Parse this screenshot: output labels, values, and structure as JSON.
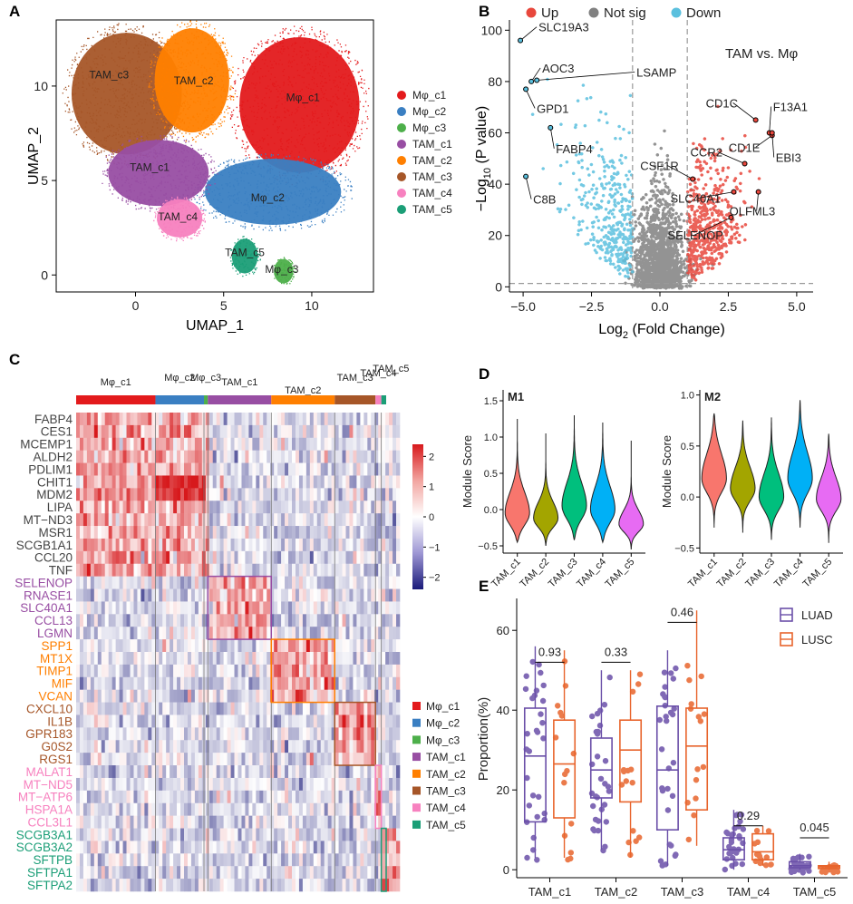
{
  "panels": {
    "A": "A",
    "B": "B",
    "C": "C",
    "D": "D",
    "E": "E"
  },
  "colors": {
    "Mphi_c1": "#e31a1c",
    "Mphi_c2": "#3a7fc2",
    "Mphi_c3": "#4daf4a",
    "TAM_c1": "#984ea3",
    "TAM_c2": "#ff7f00",
    "TAM_c3": "#a65628",
    "TAM_c4": "#f781bf",
    "TAM_c5": "#1b9e77",
    "up": "#e8473c",
    "notsig": "#808080",
    "down": "#5bc0de",
    "luad": "#6a4fa8",
    "lusc": "#e8642c"
  },
  "umap": {
    "xlabel": "UMAP_1",
    "ylabel": "UMAP_2",
    "xticks": [
      "0",
      "5",
      "10"
    ],
    "yticks": [
      "0",
      "5",
      "10"
    ],
    "xticks_val": [
      0,
      5,
      10
    ],
    "yticks_val": [
      0,
      5,
      10
    ],
    "xlim": [
      -4.5,
      13.5
    ],
    "ylim": [
      -0.9,
      13.5
    ],
    "clusters": [
      {
        "key": "Mphi_c1",
        "label": "Mφ_c1",
        "cx": 9.5,
        "cy": 9.2
      },
      {
        "key": "Mphi_c2",
        "label": "Mφ_c2",
        "cx": 7.5,
        "cy": 3.9
      },
      {
        "key": "Mphi_c3",
        "label": "Mφ_c3",
        "cx": 8.3,
        "cy": 0.1
      },
      {
        "key": "TAM_c1",
        "label": "TAM_c1",
        "cx": 0.8,
        "cy": 5.5
      },
      {
        "key": "TAM_c2",
        "label": "TAM_c2",
        "cx": 3.3,
        "cy": 10.1
      },
      {
        "key": "TAM_c3",
        "label": "TAM_c3",
        "cx": -1.5,
        "cy": 10.4
      },
      {
        "key": "TAM_c4",
        "label": "TAM_c4",
        "cx": 2.4,
        "cy": 2.9
      },
      {
        "key": "TAM_c5",
        "label": "TAM_c5",
        "cx": 6.2,
        "cy": 1.0
      }
    ]
  },
  "volcano": {
    "legend": [
      "Up",
      "Not sig",
      "Down"
    ],
    "title": "TAM vs. Mφ",
    "xlabel_pre": "Log",
    "xlabel_sub": "2",
    "xlabel_post": " (Fold Change)",
    "ylabel_pre": "−Log",
    "ylabel_sub": "10",
    "ylabel_post": " (P value)",
    "xticks": [
      "−5.0",
      "−2.5",
      "0.0",
      "2.5",
      "5.0"
    ],
    "xticks_val": [
      -5,
      -2.5,
      0,
      2.5,
      5
    ],
    "yticks": [
      "0",
      "20",
      "40",
      "60",
      "80",
      "100"
    ],
    "yticks_val": [
      0,
      20,
      40,
      60,
      80,
      100
    ],
    "xlim": [
      -5.5,
      5.6
    ],
    "ylim": [
      -2,
      104
    ],
    "fc_threshold": 1,
    "p_threshold": 1.3,
    "labeled_genes": [
      {
        "name": "SLC19A3",
        "x": -5.1,
        "y": 96,
        "dir": "down"
      },
      {
        "name": "AOC3",
        "x": -4.7,
        "y": 80,
        "dir": "down"
      },
      {
        "name": "LSAMP",
        "x": -4.5,
        "y": 80.5,
        "dir": "down"
      },
      {
        "name": "GPD1",
        "x": -4.9,
        "y": 77,
        "dir": "down"
      },
      {
        "name": "FABP4",
        "x": -4.0,
        "y": 62,
        "dir": "down"
      },
      {
        "name": "C8B",
        "x": -4.9,
        "y": 43,
        "dir": "down"
      },
      {
        "name": "CD1C",
        "x": 3.5,
        "y": 65,
        "dir": "up"
      },
      {
        "name": "F13A1",
        "x": 4.0,
        "y": 60,
        "dir": "up"
      },
      {
        "name": "CD1E",
        "x": 4.1,
        "y": 59,
        "dir": "up"
      },
      {
        "name": "EBI3",
        "x": 4.1,
        "y": 60,
        "dir": "up"
      },
      {
        "name": "CSF1R",
        "x": 1.2,
        "y": 42,
        "dir": "up"
      },
      {
        "name": "CCR2",
        "x": 3.1,
        "y": 48,
        "dir": "up"
      },
      {
        "name": "SLC40A1",
        "x": 2.7,
        "y": 37,
        "dir": "up"
      },
      {
        "name": "OLFML3",
        "x": 3.6,
        "y": 37,
        "dir": "up"
      },
      {
        "name": "SELENOP",
        "x": 2.6,
        "y": 27,
        "dir": "up"
      }
    ]
  },
  "heatmap": {
    "column_groups": [
      {
        "key": "Mphi_c1",
        "label": "Mφ_c1",
        "frac": 0.245
      },
      {
        "key": "Mphi_c2",
        "label": "Mφ_c2",
        "frac": 0.15
      },
      {
        "key": "Mphi_c3",
        "label": "Mφ_c3",
        "frac": 0.012
      },
      {
        "key": "TAM_c1",
        "label": "TAM_c1",
        "frac": 0.196
      },
      {
        "key": "TAM_c2",
        "label": "TAM_c2",
        "frac": 0.196
      },
      {
        "key": "TAM_c3",
        "label": "TAM_c3",
        "frac": 0.126
      },
      {
        "key": "TAM_c4",
        "label": "TAM_c4",
        "frac": 0.018
      },
      {
        "key": "TAM_c5",
        "label": "TAM_c5",
        "frac": 0.015
      }
    ],
    "genes": [
      {
        "name": "FABP4",
        "group": "Mphi"
      },
      {
        "name": "CES1",
        "group": "Mphi"
      },
      {
        "name": "MCEMP1",
        "group": "Mphi"
      },
      {
        "name": "ALDH2",
        "group": "Mphi"
      },
      {
        "name": "PDLIM1",
        "group": "Mphi"
      },
      {
        "name": "CHIT1",
        "group": "Mphi"
      },
      {
        "name": "MDM2",
        "group": "Mphi"
      },
      {
        "name": "LIPA",
        "group": "Mphi"
      },
      {
        "name": "MT−ND3",
        "group": "Mphi"
      },
      {
        "name": "MSR1",
        "group": "Mphi"
      },
      {
        "name": "SCGB1A1",
        "group": "Mphi"
      },
      {
        "name": "CCL20",
        "group": "Mphi"
      },
      {
        "name": "TNF",
        "group": "Mphi"
      },
      {
        "name": "SELENOP",
        "group": "TAM_c1"
      },
      {
        "name": "RNASE1",
        "group": "TAM_c1"
      },
      {
        "name": "SLC40A1",
        "group": "TAM_c1"
      },
      {
        "name": "CCL13",
        "group": "TAM_c1"
      },
      {
        "name": "LGMN",
        "group": "TAM_c1"
      },
      {
        "name": "SPP1",
        "group": "TAM_c2"
      },
      {
        "name": "MT1X",
        "group": "TAM_c2"
      },
      {
        "name": "TIMP1",
        "group": "TAM_c2"
      },
      {
        "name": "MIF",
        "group": "TAM_c2"
      },
      {
        "name": "VCAN",
        "group": "TAM_c2"
      },
      {
        "name": "CXCL10",
        "group": "TAM_c3"
      },
      {
        "name": "IL1B",
        "group": "TAM_c3"
      },
      {
        "name": "GPR183",
        "group": "TAM_c3"
      },
      {
        "name": "G0S2",
        "group": "TAM_c3"
      },
      {
        "name": "RGS1",
        "group": "TAM_c3"
      },
      {
        "name": "MALAT1",
        "group": "TAM_c4"
      },
      {
        "name": "MT−ND5",
        "group": "TAM_c4"
      },
      {
        "name": "MT−ATP6",
        "group": "TAM_c4"
      },
      {
        "name": "HSPA1A",
        "group": "TAM_c4"
      },
      {
        "name": "CCL3L1",
        "group": "TAM_c4"
      },
      {
        "name": "SCGB3A1",
        "group": "TAM_c5"
      },
      {
        "name": "SCGB3A2",
        "group": "TAM_c5"
      },
      {
        "name": "SFTPB",
        "group": "TAM_c5"
      },
      {
        "name": "SFTPA1",
        "group": "TAM_c5"
      },
      {
        "name": "SFTPA2",
        "group": "TAM_c5"
      }
    ],
    "scale_ticks": [
      "2",
      "1",
      "0",
      "−1",
      "−2"
    ],
    "scale_vals": [
      2,
      1,
      0,
      -1,
      -2
    ],
    "scale_range": [
      -2.4,
      2.4
    ]
  },
  "violin": {
    "ylabel": "Module Score",
    "categories": [
      "TAM_c1",
      "TAM_c2",
      "TAM_c3",
      "TAM_c4",
      "TAM_c5"
    ],
    "fills": [
      "#f8766d",
      "#a3a500",
      "#00bf7d",
      "#00b0f6",
      "#e76bf3"
    ],
    "M1": {
      "title": "M1",
      "yticks": [
        "1.5",
        "1.0",
        "0.5",
        "0.0",
        "−0.5"
      ],
      "yticks_val": [
        1.5,
        1.0,
        0.5,
        0.0,
        -0.5
      ],
      "ylim": [
        -0.6,
        1.65
      ],
      "dists": [
        {
          "median": -0.05,
          "min": -0.45,
          "max": 1.25,
          "sd": 0.18
        },
        {
          "median": -0.12,
          "min": -0.5,
          "max": 1.05,
          "sd": 0.14
        },
        {
          "median": 0.05,
          "min": -0.42,
          "max": 1.3,
          "sd": 0.2
        },
        {
          "median": 0.0,
          "min": -0.45,
          "max": 1.2,
          "sd": 0.2
        },
        {
          "median": -0.2,
          "min": -0.55,
          "max": 0.95,
          "sd": 0.12
        }
      ]
    },
    "M2": {
      "title": "M2",
      "yticks": [
        "1.0",
        "0.5",
        "0.0",
        "−0.5"
      ],
      "yticks_val": [
        1.0,
        0.5,
        0.0,
        -0.5
      ],
      "ylim": [
        -0.55,
        1.05
      ],
      "dists": [
        {
          "median": 0.18,
          "min": -0.3,
          "max": 0.82,
          "sd": 0.15
        },
        {
          "median": 0.08,
          "min": -0.35,
          "max": 0.75,
          "sd": 0.13
        },
        {
          "median": 0.0,
          "min": -0.42,
          "max": 0.78,
          "sd": 0.14
        },
        {
          "median": 0.18,
          "min": -0.3,
          "max": 0.95,
          "sd": 0.16
        },
        {
          "median": -0.02,
          "min": -0.45,
          "max": 0.62,
          "sd": 0.13
        }
      ]
    }
  },
  "boxplot": {
    "type": "box",
    "ylabel": "Proportion(%)",
    "categories": [
      "TAM_c1",
      "TAM_c2",
      "TAM_c3",
      "TAM_c4",
      "TAM_c5"
    ],
    "yticks": [
      "0",
      "20",
      "40",
      "60"
    ],
    "yticks_val": [
      0,
      20,
      40,
      60
    ],
    "ylim": [
      -2,
      68
    ],
    "legend": [
      "LUAD",
      "LUSC"
    ],
    "pvalues": [
      "0.93",
      "0.33",
      "0.46",
      "0.29",
      "0.045"
    ],
    "pvalue_y": [
      52,
      52,
      62,
      11,
      8
    ],
    "series": [
      {
        "name": "LUAD",
        "key": "luad",
        "stats": [
          {
            "q1": 12,
            "median": 28.5,
            "q3": 40.5,
            "min": 3,
            "max": 56
          },
          {
            "q1": 18,
            "median": 25,
            "q3": 33,
            "min": 5,
            "max": 50
          },
          {
            "q1": 10,
            "median": 25,
            "q3": 41,
            "min": 1,
            "max": 55
          },
          {
            "q1": 2.5,
            "median": 5,
            "q3": 8,
            "min": 0,
            "max": 15
          },
          {
            "q1": 0.5,
            "median": 1,
            "q3": 2,
            "min": 0,
            "max": 4
          }
        ]
      },
      {
        "name": "LUSC",
        "key": "lusc",
        "stats": [
          {
            "q1": 13,
            "median": 26.5,
            "q3": 37.5,
            "min": 3,
            "max": 55
          },
          {
            "q1": 17,
            "median": 30,
            "q3": 37.5,
            "min": 3,
            "max": 50
          },
          {
            "q1": 15,
            "median": 31,
            "q3": 40.5,
            "min": 6,
            "max": 65
          },
          {
            "q1": 2.5,
            "median": 4.5,
            "q3": 9,
            "min": 1,
            "max": 11
          },
          {
            "q1": 0.3,
            "median": 0.7,
            "q3": 1,
            "min": 0,
            "max": 2
          }
        ]
      }
    ]
  }
}
